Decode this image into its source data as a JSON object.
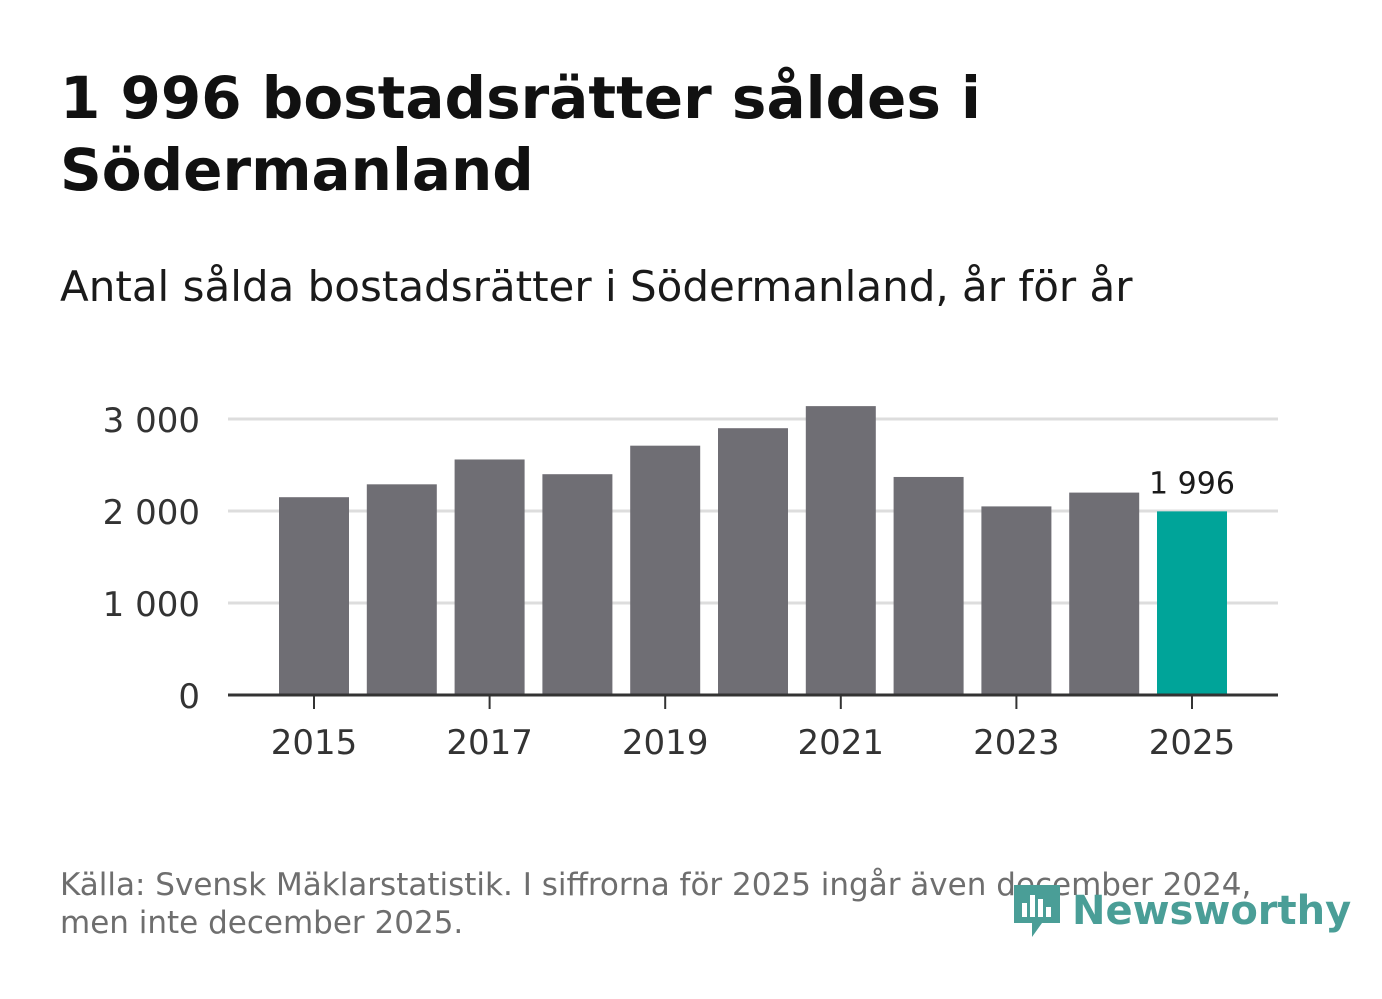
{
  "title": "1 996 bostadsrätter såldes i Södermanland",
  "subtitle": "Antal sålda bostadsrätter i Södermanland, år för år",
  "footer": {
    "line1": "Källa: Svensk Mäklarstatistik. I siffrorna för 2025 ingår även december 2024,",
    "line2": "men inte december 2025."
  },
  "logo": {
    "text": "Newsworthy",
    "icon": "newsworthy-logo-icon",
    "color": "#4a9e97"
  },
  "colors": {
    "bar": "#6f6e74",
    "highlight": "#00a499",
    "grid": "#dddddd",
    "axis": "#333333"
  },
  "chart_data": {
    "type": "bar",
    "title": "Antal sålda bostadsrätter i Södermanland, år för år",
    "xlabel": "",
    "ylabel": "",
    "categories": [
      "2015",
      "2016",
      "2017",
      "2018",
      "2019",
      "2020",
      "2021",
      "2022",
      "2023",
      "2024",
      "2025"
    ],
    "values": [
      2150,
      2290,
      2560,
      2400,
      2710,
      2900,
      3140,
      2370,
      2050,
      2200,
      1996
    ],
    "highlight": "2025",
    "highlight_label": "1 996",
    "ylim": [
      0,
      3000
    ],
    "yticks": [
      0,
      1000,
      2000,
      3000
    ],
    "ytick_labels": [
      "0",
      "1 000",
      "2 000",
      "3 000"
    ],
    "xtick_labels": [
      "2015",
      "2017",
      "2019",
      "2021",
      "2023",
      "2025"
    ],
    "grid": true
  }
}
